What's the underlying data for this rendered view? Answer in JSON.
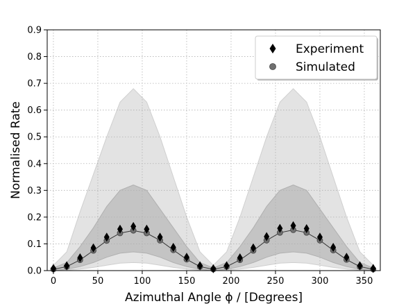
{
  "chart_data": {
    "type": "scatter",
    "xlabel": "Azimuthal Angle ϕ / [Degrees]",
    "ylabel": "Normalised Rate",
    "xlim": [
      -7,
      368
    ],
    "ylim": [
      0,
      0.9
    ],
    "xticks": [
      0,
      50,
      100,
      150,
      200,
      250,
      300,
      350
    ],
    "yticks": [
      0.0,
      0.1,
      0.2,
      0.3,
      0.4,
      0.5,
      0.6,
      0.7,
      0.8,
      0.9
    ],
    "grid": true,
    "legend_position": "top-right",
    "x": [
      0,
      15,
      30,
      45,
      60,
      75,
      90,
      105,
      120,
      135,
      150,
      165,
      180,
      195,
      210,
      225,
      240,
      255,
      270,
      285,
      300,
      315,
      330,
      345,
      360
    ],
    "series": [
      {
        "name": "Experiment",
        "marker": "diamond",
        "color": "#000000",
        "values": [
          0.008,
          0.018,
          0.048,
          0.085,
          0.125,
          0.155,
          0.165,
          0.155,
          0.125,
          0.087,
          0.05,
          0.018,
          0.007,
          0.018,
          0.048,
          0.085,
          0.127,
          0.158,
          0.168,
          0.157,
          0.125,
          0.087,
          0.05,
          0.018,
          0.008
        ]
      },
      {
        "name": "Simulated",
        "marker": "circle",
        "color": "#707070",
        "values": [
          0.005,
          0.015,
          0.04,
          0.075,
          0.112,
          0.14,
          0.15,
          0.14,
          0.113,
          0.077,
          0.042,
          0.015,
          0.005,
          0.015,
          0.04,
          0.075,
          0.113,
          0.142,
          0.152,
          0.142,
          0.113,
          0.076,
          0.041,
          0.015,
          0.005
        ]
      }
    ],
    "bands": {
      "outer_upper": [
        0.02,
        0.07,
        0.22,
        0.36,
        0.5,
        0.63,
        0.68,
        0.63,
        0.5,
        0.35,
        0.2,
        0.07,
        0.02,
        0.07,
        0.2,
        0.35,
        0.5,
        0.63,
        0.68,
        0.63,
        0.5,
        0.35,
        0.2,
        0.07,
        0.02
      ],
      "inner_upper": [
        0.01,
        0.03,
        0.09,
        0.16,
        0.24,
        0.3,
        0.32,
        0.3,
        0.23,
        0.16,
        0.09,
        0.03,
        0.01,
        0.03,
        0.09,
        0.16,
        0.24,
        0.3,
        0.32,
        0.3,
        0.23,
        0.16,
        0.09,
        0.03,
        0.01
      ],
      "inner_lower": [
        0.0,
        0.005,
        0.015,
        0.03,
        0.05,
        0.065,
        0.07,
        0.065,
        0.05,
        0.03,
        0.015,
        0.005,
        0.0,
        0.005,
        0.015,
        0.03,
        0.05,
        0.065,
        0.07,
        0.065,
        0.05,
        0.03,
        0.015,
        0.005,
        0.0
      ],
      "outer_lower": [
        0.0,
        0.002,
        0.006,
        0.012,
        0.02,
        0.028,
        0.03,
        0.028,
        0.02,
        0.012,
        0.006,
        0.002,
        0.0,
        0.002,
        0.006,
        0.012,
        0.02,
        0.028,
        0.03,
        0.028,
        0.02,
        0.012,
        0.006,
        0.002,
        0.0
      ],
      "outer_color": "#e3e3e3",
      "inner_color": "#c4c4c4"
    },
    "fit_line_color": "#333333"
  }
}
